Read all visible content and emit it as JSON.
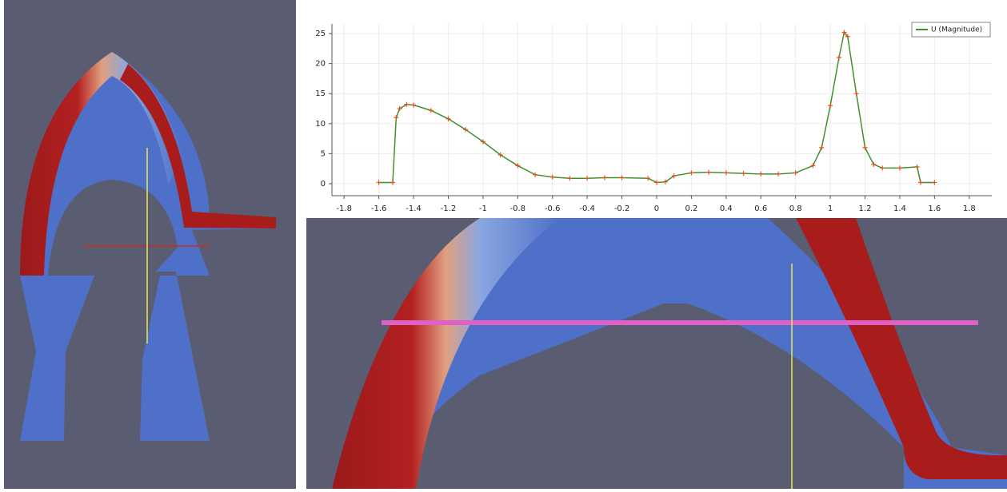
{
  "chart_data": {
    "type": "line",
    "series": [
      {
        "name": "U (Magnitude)",
        "color": "#3f8f2f",
        "marker_color": "#e8501c",
        "x": [
          -1.6,
          -1.52,
          -1.5,
          -1.48,
          -1.44,
          -1.4,
          -1.3,
          -1.2,
          -1.1,
          -1.0,
          -0.9,
          -0.8,
          -0.7,
          -0.6,
          -0.5,
          -0.4,
          -0.3,
          -0.2,
          -0.05,
          0,
          0.05,
          0.1,
          0.2,
          0.3,
          0.4,
          0.5,
          0.6,
          0.7,
          0.8,
          0.9,
          0.95,
          1.0,
          1.05,
          1.08,
          1.1,
          1.15,
          1.2,
          1.25,
          1.3,
          1.4,
          1.5,
          1.52,
          1.6
        ],
        "values": [
          0.2,
          0.2,
          11,
          12.5,
          13.2,
          13.1,
          12.2,
          10.8,
          9,
          7,
          4.8,
          3,
          1.5,
          1.1,
          0.9,
          0.9,
          1.0,
          1.0,
          0.9,
          0.2,
          0.3,
          1.3,
          1.8,
          1.9,
          1.8,
          1.7,
          1.6,
          1.6,
          1.8,
          3,
          6,
          13,
          21,
          25.2,
          24.5,
          15,
          6,
          3.2,
          2.6,
          2.6,
          2.8,
          0.2,
          0.2
        ]
      }
    ],
    "xlim": [
      -1.87,
      1.93
    ],
    "xticks": [
      -1.8,
      -1.6,
      -1.4,
      -1.2,
      -1,
      -0.8,
      -0.6,
      -0.4,
      -0.2,
      0,
      0.2,
      0.4,
      0.6,
      0.8,
      1,
      1.2,
      1.4,
      1.6,
      1.8
    ],
    "ylim": [
      -2,
      26.6
    ],
    "yticks": [
      0,
      5,
      10,
      15,
      20,
      25
    ],
    "grid": true,
    "legend": "top-right"
  }
}
